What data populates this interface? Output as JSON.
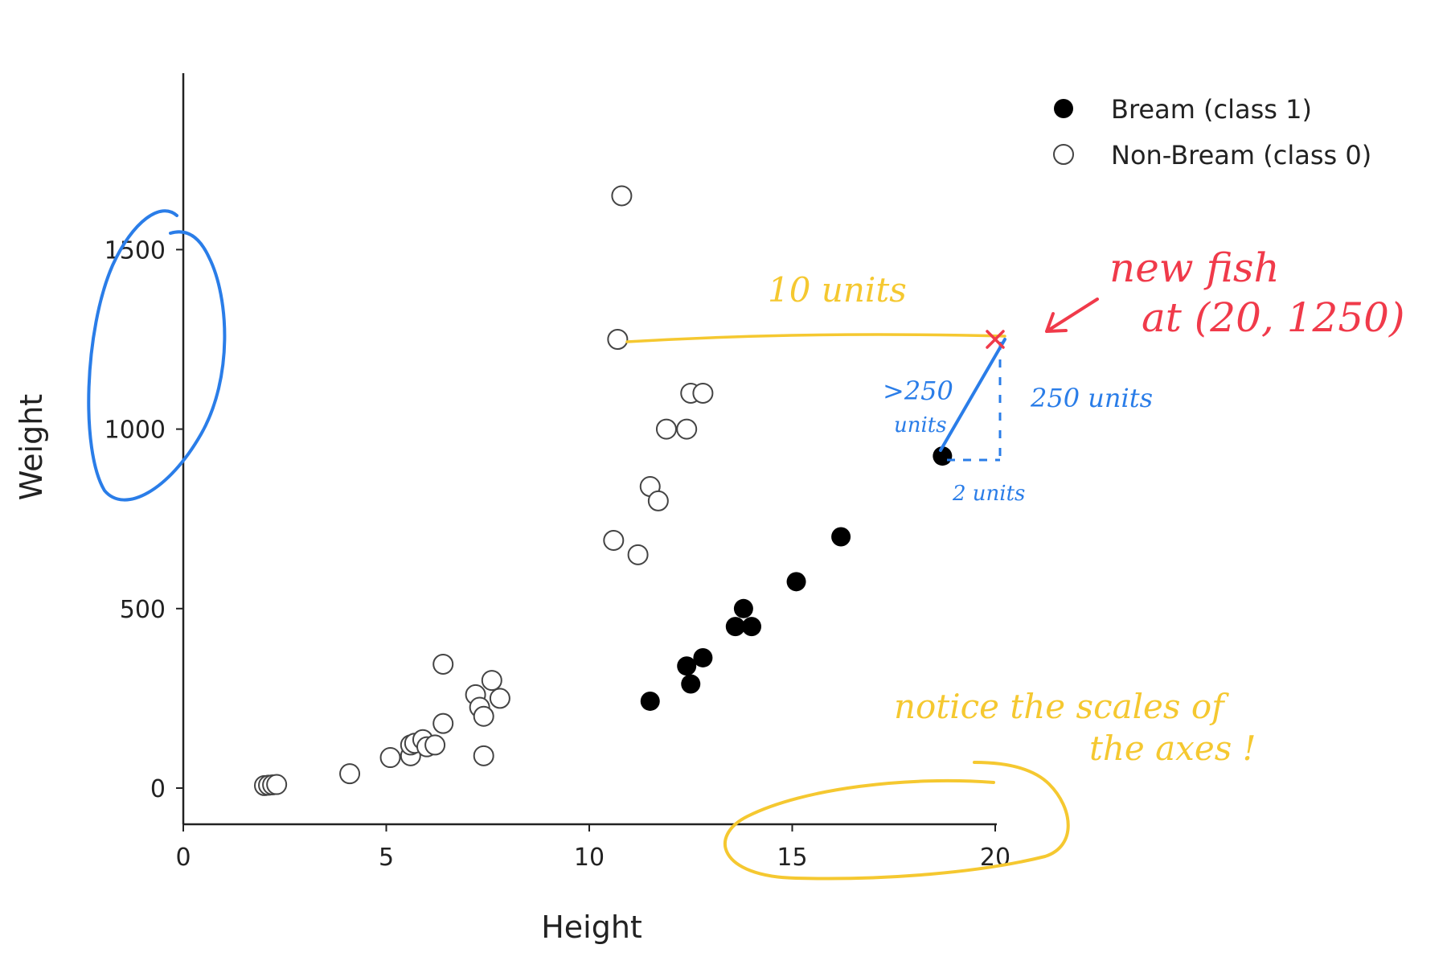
{
  "chart_data": {
    "type": "scatter",
    "title": "",
    "xlabel": "Height",
    "ylabel": "Weight",
    "xlim": [
      -0.5,
      20
    ],
    "ylim": [
      -100,
      2000
    ],
    "xticks": [
      0,
      5,
      10,
      15,
      20
    ],
    "yticks": [
      0,
      500,
      1000,
      1500
    ],
    "grid": false,
    "legend_position": "top-right",
    "series": [
      {
        "name": "Bream (class 1)",
        "marker": "filled-circle",
        "color": "#000000",
        "points": [
          [
            11.5,
            242
          ],
          [
            12.4,
            340
          ],
          [
            12.5,
            290
          ],
          [
            12.8,
            363
          ],
          [
            13.6,
            450
          ],
          [
            13.8,
            500
          ],
          [
            14.0,
            450
          ],
          [
            15.1,
            575
          ],
          [
            16.2,
            700
          ],
          [
            18.7,
            925
          ]
        ]
      },
      {
        "name": "Non-Bream (class 0)",
        "marker": "hollow-circle",
        "color": "#444444",
        "points": [
          [
            2.0,
            7
          ],
          [
            2.1,
            8
          ],
          [
            2.2,
            9
          ],
          [
            2.3,
            10
          ],
          [
            4.1,
            40
          ],
          [
            5.1,
            85
          ],
          [
            5.6,
            90
          ],
          [
            5.6,
            120
          ],
          [
            5.7,
            125
          ],
          [
            5.9,
            135
          ],
          [
            6.0,
            115
          ],
          [
            6.2,
            120
          ],
          [
            6.4,
            180
          ],
          [
            6.4,
            345
          ],
          [
            7.2,
            260
          ],
          [
            7.3,
            225
          ],
          [
            7.4,
            200
          ],
          [
            7.4,
            90
          ],
          [
            7.6,
            300
          ],
          [
            7.8,
            250
          ],
          [
            10.6,
            690
          ],
          [
            10.7,
            1250
          ],
          [
            10.8,
            1650
          ],
          [
            11.2,
            650
          ],
          [
            11.5,
            840
          ],
          [
            11.7,
            800
          ],
          [
            11.9,
            1000
          ],
          [
            12.4,
            1000
          ],
          [
            12.5,
            1100
          ],
          [
            12.8,
            1100
          ]
        ]
      }
    ],
    "annotations": {
      "new_point": {
        "x": 20,
        "y": 1250,
        "marker": "x",
        "color": "#f03a4a"
      },
      "new_fish_line1": "new  fish",
      "new_fish_line2": "at  (20, 1250)",
      "horizontal_distance": "10 units",
      "gt_distance_line1": ">250",
      "gt_distance_line2": "units",
      "vertical_distance": "250 units",
      "small_distance": "2 units",
      "scale_note_line1": "notice  the  scales  of",
      "scale_note_line2": "the  axes !"
    }
  },
  "colors": {
    "axis": "#222222",
    "annotation_yellow": "#f5c830",
    "annotation_red": "#f03a4a",
    "annotation_blue": "#2a7de8"
  }
}
